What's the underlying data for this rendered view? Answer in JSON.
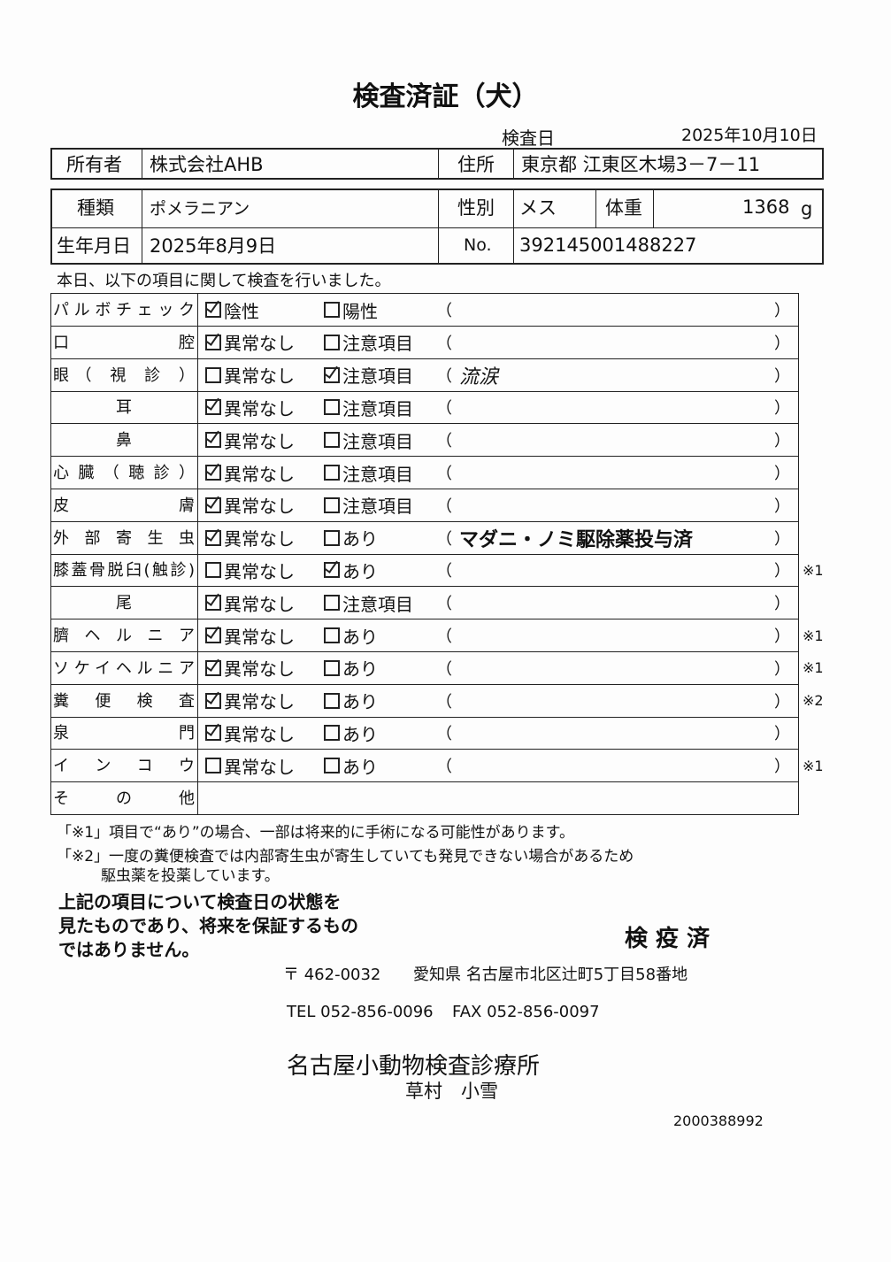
{
  "title": "検査済証（犬）",
  "exam_date_label": "検査日",
  "exam_date": "2025年10月10日",
  "owner_label": "所有者",
  "owner": "株式会社AHB",
  "address_label": "住所",
  "address": "東京都 江東区木場3－7－11",
  "breed_label": "種類",
  "breed": "ポメラニアン",
  "sex_label": "性別",
  "sex": "メス",
  "weight_label": "体重",
  "weight": "1368",
  "weight_unit": "g",
  "birth_label": "生年月日",
  "birth": "2025年8月9日",
  "no_label": "No.",
  "no": "392145001488227",
  "intro": "本日、以下の項目に関して検査を行いました。",
  "rows": [
    {
      "label": "パルボチェック",
      "opt1": "陰性",
      "opt1_checked": true,
      "opt2": "陽性",
      "opt2_checked": false,
      "comment": "",
      "note": ""
    },
    {
      "label": "口　　　　腔",
      "opt1": "異常なし",
      "opt1_checked": true,
      "opt2": "注意項目",
      "opt2_checked": false,
      "comment": "",
      "note": ""
    },
    {
      "label": "眼（ 視 診 ）",
      "opt1": "異常なし",
      "opt1_checked": false,
      "opt2": "注意項目",
      "opt2_checked": true,
      "comment": "流涙",
      "note": ""
    },
    {
      "label": "耳",
      "opt1": "異常なし",
      "opt1_checked": true,
      "opt2": "注意項目",
      "opt2_checked": false,
      "comment": "",
      "note": ""
    },
    {
      "label": "鼻",
      "opt1": "異常なし",
      "opt1_checked": true,
      "opt2": "注意項目",
      "opt2_checked": false,
      "comment": "",
      "note": ""
    },
    {
      "label": "心臓（聴診）",
      "opt1": "異常なし",
      "opt1_checked": true,
      "opt2": "注意項目",
      "opt2_checked": false,
      "comment": "",
      "note": ""
    },
    {
      "label": "皮　　　　膚",
      "opt1": "異常なし",
      "opt1_checked": true,
      "opt2": "注意項目",
      "opt2_checked": false,
      "comment": "",
      "note": ""
    },
    {
      "label": "外 部 寄 生 虫",
      "opt1": "異常なし",
      "opt1_checked": true,
      "opt2": "あり",
      "opt2_checked": false,
      "comment": "マダニ・ノミ駆除薬投与済",
      "note": ""
    },
    {
      "label": "膝蓋骨脱臼(触診)",
      "opt1": "異常なし",
      "opt1_checked": false,
      "opt2": "あり",
      "opt2_checked": true,
      "comment": "",
      "note": "※1"
    },
    {
      "label": "尾",
      "opt1": "異常なし",
      "opt1_checked": true,
      "opt2": "注意項目",
      "opt2_checked": false,
      "comment": "",
      "note": ""
    },
    {
      "label": "臍 ヘ ル ニ ア",
      "opt1": "異常なし",
      "opt1_checked": true,
      "opt2": "あり",
      "opt2_checked": false,
      "comment": "",
      "note": "※1"
    },
    {
      "label": "ソケイヘルニア",
      "opt1": "異常なし",
      "opt1_checked": true,
      "opt2": "あり",
      "opt2_checked": false,
      "comment": "",
      "note": "※1"
    },
    {
      "label": "糞 便 検 査",
      "opt1": "異常なし",
      "opt1_checked": true,
      "opt2": "あり",
      "opt2_checked": false,
      "comment": "",
      "note": "※2"
    },
    {
      "label": "泉　　　　門",
      "opt1": "異常なし",
      "opt1_checked": true,
      "opt2": "あり",
      "opt2_checked": false,
      "comment": "",
      "note": ""
    },
    {
      "label": "イ ン コ ウ",
      "opt1": "異常なし",
      "opt1_checked": false,
      "opt2": "あり",
      "opt2_checked": false,
      "comment": "",
      "note": "※1"
    },
    {
      "label": "そ　の　他"
    }
  ],
  "paren_open": "（",
  "paren_close": "）",
  "footnote1": "「※1」項目で“あり”の場合、一部は将来的に手術になる可能性があります。",
  "footnote2a": "「※2」一度の糞便検査では内部寄生虫が寄生していても発見できない場合があるため",
  "footnote2b": "駆虫薬を投薬しています。",
  "disclaimer": [
    "上記の項目について検査日の状態を",
    "見たものであり、将来を保証するもの",
    "ではありません。"
  ],
  "stamp": "検 疫 済",
  "postal": "〒 462-0032",
  "clinic_address": "愛知県 名古屋市北区辻町5丁目58番地",
  "tel": "TEL 052-856-0096",
  "fax": "FAX 052-856-0097",
  "clinic_name": "名古屋小動物検査診療所",
  "vet_name": "草村　小雪",
  "doc_number": "2000388992"
}
